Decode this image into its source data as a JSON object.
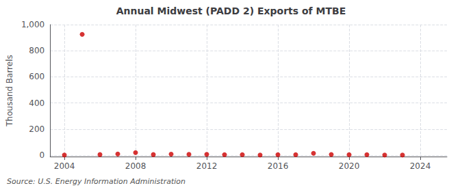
{
  "chart_data": {
    "type": "scatter",
    "title": "Annual Midwest (PADD 2) Exports of MTBE",
    "ylabel": "Thousand Barrels",
    "annotations": [
      "Source: U.S. Energy Information Administration"
    ],
    "x": [
      2004,
      2005,
      2006,
      2007,
      2008,
      2009,
      2010,
      2011,
      2012,
      2013,
      2014,
      2015,
      2016,
      2017,
      2018,
      2019,
      2020,
      2021,
      2022,
      2023
    ],
    "values": [
      2,
      925,
      5,
      10,
      20,
      5,
      8,
      7,
      7,
      4,
      4,
      2,
      4,
      4,
      15,
      6,
      4,
      4,
      2,
      2
    ],
    "color": "#cc0000",
    "marker": "circle",
    "xlim": [
      2003.2,
      2025.5
    ],
    "xticks": [
      2004,
      2008,
      2012,
      2016,
      2020,
      2024
    ],
    "ylim": [
      -10,
      1000
    ],
    "yticks": [
      0,
      200,
      400,
      600,
      800,
      {
        "value": 1000,
        "label": "1,000"
      }
    ],
    "grid": true
  }
}
